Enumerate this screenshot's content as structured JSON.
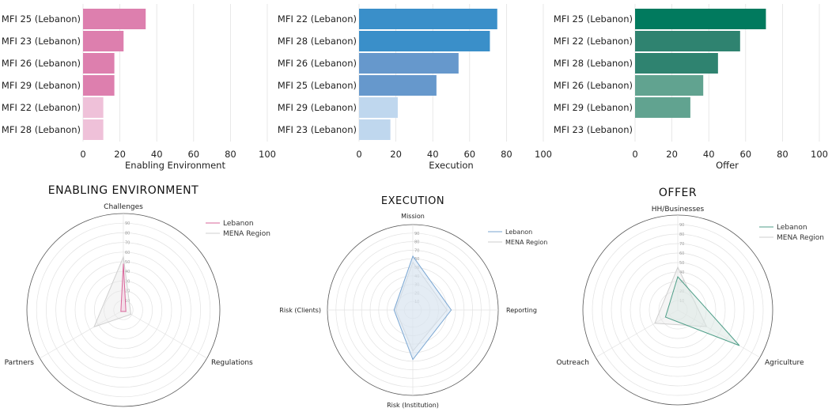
{
  "colors": {
    "pink": {
      "dark": "#dd7fae",
      "light": "#efc1d9",
      "line": "#d9669a",
      "fill": "#f4cfe0"
    },
    "blue": {
      "dark": "#3a8fc9",
      "mid": "#6698cc",
      "light": "#bfd7ee",
      "line": "#7aa6d2",
      "fill": "#d6e4f2"
    },
    "green": {
      "dark": "#017a5e",
      "mid": "#2f8370",
      "light": "#61a390",
      "line": "#4f9e88",
      "fill": "#dbe8e3"
    },
    "mena": "#cfcfcf",
    "grid": "#e2e2e2"
  },
  "chart_data": [
    {
      "type": "bar",
      "orientation": "horizontal",
      "categories": [
        "MFI 25 (Lebanon)",
        "MFI 23 (Lebanon)",
        "MFI 26 (Lebanon)",
        "MFI 29 (Lebanon)",
        "MFI 22 (Lebanon)",
        "MFI 28 (Lebanon)"
      ],
      "values": [
        34,
        22,
        17,
        17,
        11,
        11
      ],
      "bar_shades": [
        "dark",
        "dark",
        "dark",
        "dark",
        "light",
        "light"
      ],
      "xlabel": "Enabling Environment",
      "xlim": [
        0,
        100
      ],
      "xticks": [
        "0",
        "20",
        "40",
        "60",
        "80",
        "100"
      ],
      "palette": "pink",
      "grid": true
    },
    {
      "type": "bar",
      "orientation": "horizontal",
      "categories": [
        "MFI 22 (Lebanon)",
        "MFI 28 (Lebanon)",
        "MFI 26 (Lebanon)",
        "MFI 25 (Lebanon)",
        "MFI 29 (Lebanon)",
        "MFI 23 (Lebanon)"
      ],
      "values": [
        75,
        71,
        54,
        42,
        21,
        17
      ],
      "bar_shades": [
        "dark",
        "dark",
        "mid",
        "mid",
        "light",
        "light"
      ],
      "xlabel": "Execution",
      "xlim": [
        0,
        100
      ],
      "xticks": [
        "0",
        "20",
        "40",
        "60",
        "80",
        "100"
      ],
      "palette": "blue",
      "grid": true
    },
    {
      "type": "bar",
      "orientation": "horizontal",
      "categories": [
        "MFI 25 (Lebanon)",
        "MFI 22 (Lebanon)",
        "MFI 28 (Lebanon)",
        "MFI 26 (Lebanon)",
        "MFI 29 (Lebanon)",
        "MFI 23 (Lebanon)"
      ],
      "values": [
        71,
        57,
        45,
        37,
        30,
        0
      ],
      "bar_shades": [
        "dark",
        "mid",
        "mid",
        "light",
        "light",
        "light"
      ],
      "xlabel": "Offer",
      "xlim": [
        0,
        100
      ],
      "xticks": [
        "0",
        "20",
        "40",
        "60",
        "80",
        "100"
      ],
      "palette": "green",
      "grid": true
    },
    {
      "type": "radar",
      "title": "ENABLING ENVIRONMENT",
      "axes": [
        "Challenges",
        "Regulations",
        "Partners"
      ],
      "rlim": [
        0,
        100
      ],
      "rticks": [
        "10",
        "20",
        "30",
        "40",
        "50",
        "60",
        "70",
        "80",
        "90"
      ],
      "series": [
        {
          "name": "Lebanon",
          "values": [
            48,
            3,
            3
          ]
        },
        {
          "name": "MENA Region",
          "values": [
            55,
            9,
            35
          ]
        }
      ],
      "legend": "top-right",
      "palette": "pink"
    },
    {
      "type": "radar",
      "title": "EXECUTION",
      "axes": [
        "Mission",
        "Reporting",
        "Risk (Institution)",
        "Risk (Clients)"
      ],
      "rlim": [
        0,
        100
      ],
      "rticks": [
        "10",
        "20",
        "30",
        "40",
        "50",
        "60",
        "70",
        "80",
        "90"
      ],
      "series": [
        {
          "name": "Lebanon",
          "values": [
            63,
            45,
            58,
            22
          ]
        },
        {
          "name": "MENA Region",
          "values": [
            56,
            40,
            48,
            20
          ]
        }
      ],
      "legend": "top-right",
      "palette": "blue"
    },
    {
      "type": "radar",
      "title": "OFFER",
      "axes": [
        "HH/Businesses",
        "Agriculture",
        "Outreach"
      ],
      "rlim": [
        0,
        100
      ],
      "rticks": [
        "10",
        "20",
        "30",
        "40",
        "50",
        "60",
        "70",
        "80",
        "90"
      ],
      "series": [
        {
          "name": "Lebanon",
          "values": [
            35,
            75,
            15
          ]
        },
        {
          "name": "MENA Region",
          "values": [
            45,
            35,
            28
          ]
        }
      ],
      "legend": "top-right",
      "palette": "green"
    }
  ]
}
